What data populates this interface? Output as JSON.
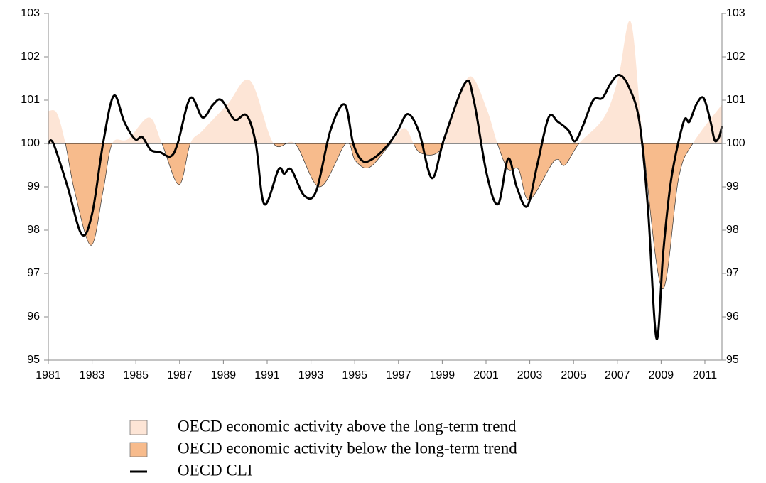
{
  "chart_data": {
    "type": "line",
    "xlim": [
      1981,
      2011.78
    ],
    "xticks": [
      1981,
      1983,
      1985,
      1987,
      1989,
      1991,
      1993,
      1995,
      1997,
      1999,
      2001,
      2003,
      2005,
      2007,
      2009,
      2011
    ],
    "ylim": [
      95,
      103
    ],
    "yticks": [
      95,
      96,
      97,
      98,
      99,
      100,
      101,
      102,
      103
    ],
    "area": {
      "baseline": 100,
      "above": {
        "name": "OECD economic activity above the long-term trend",
        "color": "#fde5d6"
      },
      "below": {
        "name": "OECD economic activity below the long-term trend",
        "color": "#f7bb8c"
      },
      "x": [
        1981.0,
        1981.39,
        1981.78,
        1982.2,
        1982.95,
        1983.5,
        1983.92,
        1984.64,
        1985.61,
        1986.19,
        1986.97,
        1987.49,
        1988.05,
        1989.18,
        1990.22,
        1991.29,
        1992.27,
        1993.4,
        1994.6,
        1995.03,
        1995.68,
        1996.65,
        1997.3,
        1997.95,
        1998.92,
        1999.57,
        2000.29,
        2001.03,
        2001.52,
        2002.01,
        2002.49,
        2002.98,
        2004.12,
        2004.6,
        2005.25,
        2006.39,
        2007.04,
        2007.62,
        2008.18,
        2009.05,
        2009.8,
        2010.45,
        2011.78
      ],
      "values": [
        100.75,
        100.7,
        100,
        98.9,
        97.65,
        98.9,
        100,
        100.1,
        100.6,
        100,
        99.05,
        100,
        100.3,
        100.9,
        101.45,
        100,
        100,
        99.0,
        100,
        99.6,
        99.45,
        100,
        100.35,
        99.8,
        99.85,
        100.8,
        101.55,
        100.8,
        100,
        99.4,
        99.4,
        98.7,
        99.6,
        99.5,
        100,
        100.6,
        101.5,
        102.8,
        100,
        96.65,
        99.2,
        100,
        100.9
      ]
    },
    "series": [
      {
        "name": "OECD CLI",
        "color": "#000000",
        "x": [
          1981.0,
          1981.23,
          1981.88,
          1982.53,
          1983.01,
          1983.5,
          1983.99,
          1984.47,
          1984.96,
          1985.29,
          1985.68,
          1986.1,
          1986.58,
          1986.91,
          1987.49,
          1988.05,
          1988.53,
          1988.92,
          1989.51,
          1990.06,
          1990.48,
          1990.87,
          1991.52,
          1991.78,
          1992.1,
          1992.69,
          1993.24,
          1993.89,
          1994.54,
          1994.93,
          1995.35,
          1995.84,
          1996.49,
          1996.97,
          1997.43,
          1997.95,
          1998.53,
          1999.08,
          2000.05,
          2000.44,
          2001.03,
          2001.55,
          2002.01,
          2002.4,
          2002.88,
          2003.34,
          2003.86,
          2004.28,
          2004.77,
          2005.06,
          2005.42,
          2005.9,
          2006.32,
          2006.71,
          2007.1,
          2007.53,
          2008.01,
          2008.4,
          2008.79,
          2009.1,
          2009.47,
          2010.03,
          2010.29,
          2010.61,
          2010.94,
          2011.26,
          2011.45,
          2011.65,
          2011.78
        ],
        "values": [
          100.0,
          100.0,
          99.0,
          97.9,
          98.4,
          100.0,
          101.1,
          100.5,
          100.1,
          100.15,
          99.85,
          99.8,
          99.7,
          100.0,
          101.05,
          100.6,
          100.9,
          101.0,
          100.55,
          100.65,
          100.0,
          98.6,
          99.4,
          99.3,
          99.4,
          98.8,
          98.9,
          100.3,
          100.9,
          100.0,
          99.6,
          99.65,
          99.95,
          100.3,
          100.68,
          100.25,
          99.2,
          100.1,
          101.4,
          101.0,
          99.3,
          98.6,
          99.65,
          99.0,
          98.55,
          99.5,
          100.6,
          100.5,
          100.3,
          100.05,
          100.4,
          101.0,
          101.05,
          101.4,
          101.58,
          101.3,
          100.5,
          98.5,
          95.5,
          97.5,
          99.2,
          100.5,
          100.5,
          100.9,
          101.05,
          100.5,
          100.07,
          100.15,
          100.4
        ]
      }
    ]
  }
}
